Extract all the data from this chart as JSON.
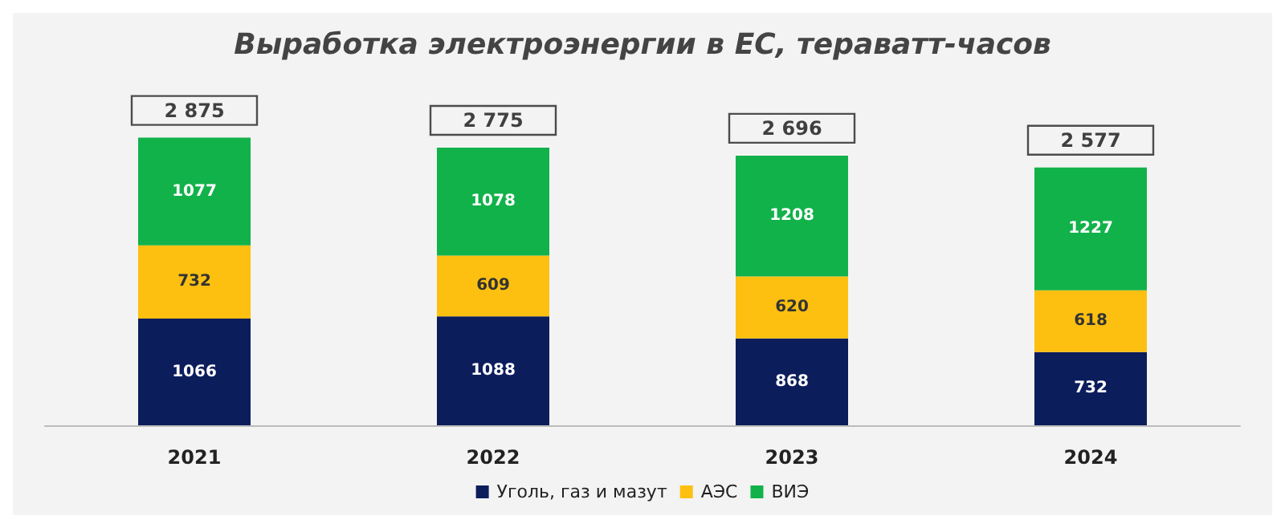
{
  "chart_data": {
    "type": "bar",
    "stacked": true,
    "title": "Выработка электроэнергии в ЕС, тераватт-часов",
    "categories": [
      "2021",
      "2022",
      "2023",
      "2024"
    ],
    "series": [
      {
        "name": "Уголь, газ и мазут",
        "color": "#0c1d5c",
        "values": [
          1066,
          1088,
          868,
          732
        ]
      },
      {
        "name": "АЭС",
        "color": "#fdc010",
        "values": [
          732,
          609,
          620,
          618
        ]
      },
      {
        "name": "ВИЭ",
        "color": "#12b24a",
        "values": [
          1077,
          1078,
          1208,
          1227
        ]
      }
    ],
    "totals": [
      "2 875",
      "2 775",
      "2 696",
      "2 577"
    ],
    "data_labels": true,
    "legend": "bottom"
  }
}
